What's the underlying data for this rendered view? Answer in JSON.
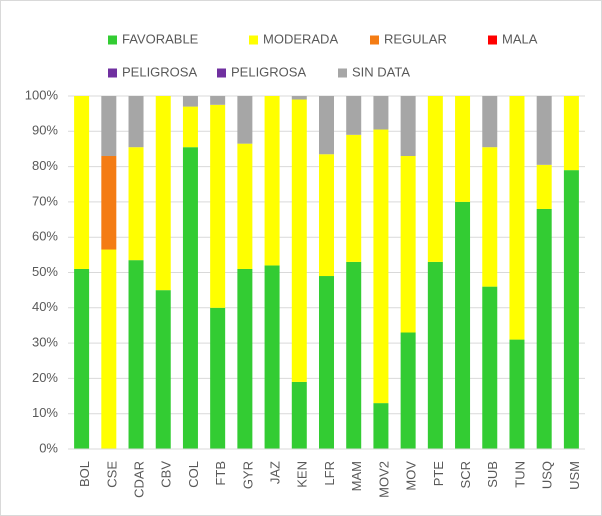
{
  "chart_data": {
    "type": "stacked-bar",
    "categories": [
      "BOL",
      "CSE",
      "CDAR",
      "CBV",
      "COL",
      "FTB",
      "GYR",
      "JAZ",
      "KEN",
      "LFR",
      "MAM",
      "MOV2",
      "MOV",
      "PTE",
      "SCR",
      "SUB",
      "TUN",
      "USQ",
      "USM"
    ],
    "series": [
      {
        "name": "FAVORABLE",
        "color": "#33cc33",
        "values": [
          51,
          0,
          53.5,
          45,
          85.5,
          40,
          51,
          52,
          19,
          49,
          53,
          13,
          33,
          53,
          70,
          46,
          31,
          68,
          79
        ]
      },
      {
        "name": "MODERADA",
        "color": "#ffff00",
        "values": [
          49,
          56.5,
          32,
          55,
          11.5,
          57.5,
          35.5,
          48,
          80,
          34.5,
          36,
          77.5,
          50,
          47,
          30,
          39.5,
          69,
          12.5,
          21
        ]
      },
      {
        "name": "REGULAR",
        "color": "#f47c14",
        "values": [
          0,
          26.5,
          0,
          0,
          0,
          0,
          0,
          0,
          0,
          0,
          0,
          0,
          0,
          0,
          0,
          0,
          0,
          0,
          0
        ]
      },
      {
        "name": "MALA",
        "color": "#ff0000",
        "values": [
          0,
          0,
          0,
          0,
          0,
          0,
          0,
          0,
          0,
          0,
          0,
          0,
          0,
          0,
          0,
          0,
          0,
          0,
          0
        ]
      },
      {
        "name": "PELIGROSA",
        "color": "#7030a0",
        "values": [
          0,
          0,
          0,
          0,
          0,
          0,
          0,
          0,
          0,
          0,
          0,
          0,
          0,
          0,
          0,
          0,
          0,
          0,
          0
        ]
      },
      {
        "name": "PELIGROSA",
        "color": "#7030a0",
        "values": [
          0,
          0,
          0,
          0,
          0,
          0,
          0,
          0,
          0,
          0,
          0,
          0,
          0,
          0,
          0,
          0,
          0,
          0,
          0
        ]
      },
      {
        "name": "SIN DATA",
        "color": "#a6a6a6",
        "values": [
          0,
          17,
          14.5,
          0,
          3,
          2.5,
          13.5,
          0,
          1,
          16.5,
          11,
          9.5,
          17,
          0,
          0,
          14.5,
          0,
          19.5,
          0
        ]
      }
    ],
    "ylim": [
      0,
      100
    ],
    "yticks": [
      {
        "value": 0,
        "label": "0%"
      },
      {
        "value": 10,
        "label": "10%"
      },
      {
        "value": 20,
        "label": "20%"
      },
      {
        "value": 30,
        "label": "30%"
      },
      {
        "value": 40,
        "label": "40%"
      },
      {
        "value": 50,
        "label": "50%"
      },
      {
        "value": 60,
        "label": "60%"
      },
      {
        "value": 70,
        "label": "70%"
      },
      {
        "value": 80,
        "label": "80%"
      },
      {
        "value": 90,
        "label": "90%"
      },
      {
        "value": 100,
        "label": "100%"
      }
    ],
    "grid": true
  }
}
